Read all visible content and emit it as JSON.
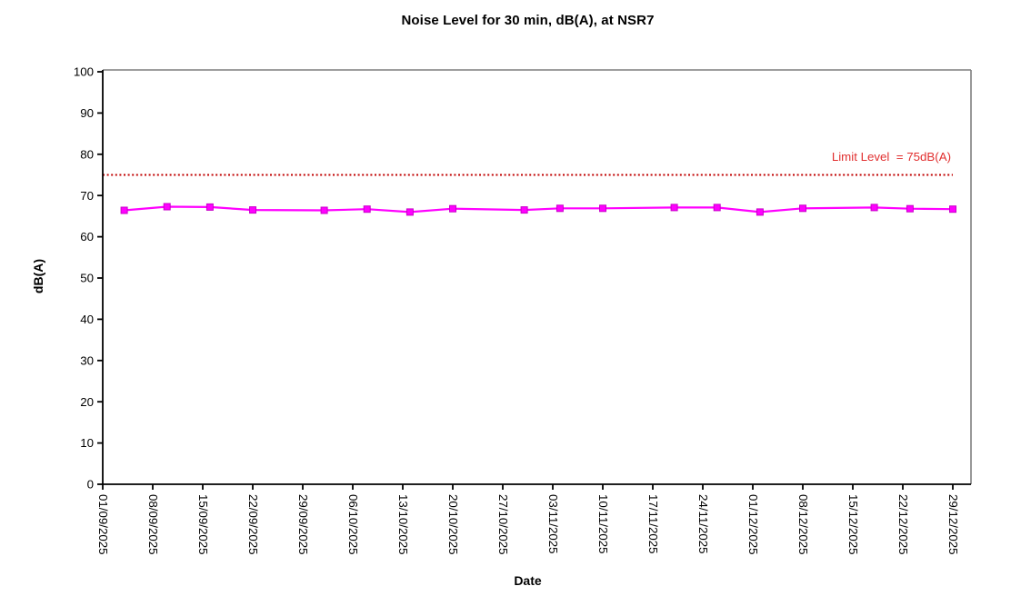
{
  "chart_data": {
    "type": "line",
    "title": "Noise Level for 30 min, dB(A), at NSR7",
    "xlabel": "Date",
    "ylabel": "dB(A)",
    "ylim": [
      0,
      100
    ],
    "ytick_interval": 10,
    "ytick_labels": [
      "0",
      "10",
      "20",
      "30",
      "40",
      "50",
      "60",
      "70",
      "80",
      "90",
      "100"
    ],
    "x_axis_kind": "date",
    "x_range_days": 119,
    "x_tick_labels": [
      "01/09/2025",
      "08/09/2025",
      "15/09/2025",
      "22/09/2025",
      "29/09/2025",
      "06/10/2025",
      "13/10/2025",
      "20/10/2025",
      "27/10/2025",
      "03/11/2025",
      "10/11/2025",
      "17/11/2025",
      "24/11/2025",
      "01/12/2025",
      "08/12/2025",
      "15/12/2025",
      "22/12/2025",
      "29/12/2025"
    ],
    "grid": false,
    "legend": false,
    "series": [
      {
        "marker": "square",
        "color": "#ff00ff",
        "marker_border_color": "#c800c8",
        "points": [
          {
            "date": "04/09/2025",
            "day": 3,
            "value": 66.4
          },
          {
            "date": "10/09/2025",
            "day": 9,
            "value": 67.3
          },
          {
            "date": "16/09/2025",
            "day": 15,
            "value": 67.2
          },
          {
            "date": "22/09/2025",
            "day": 21,
            "value": 66.5
          },
          {
            "date": "02/10/2025",
            "day": 31,
            "value": 66.4
          },
          {
            "date": "08/10/2025",
            "day": 37,
            "value": 66.7
          },
          {
            "date": "14/10/2025",
            "day": 43,
            "value": 66.0
          },
          {
            "date": "20/10/2025",
            "day": 49,
            "value": 66.8
          },
          {
            "date": "30/10/2025",
            "day": 59,
            "value": 66.5
          },
          {
            "date": "04/11/2025",
            "day": 64,
            "value": 66.9
          },
          {
            "date": "10/11/2025",
            "day": 70,
            "value": 66.9
          },
          {
            "date": "20/11/2025",
            "day": 80,
            "value": 67.1
          },
          {
            "date": "26/11/2025",
            "day": 86,
            "value": 67.1
          },
          {
            "date": "02/12/2025",
            "day": 92,
            "value": 66.0
          },
          {
            "date": "08/12/2025",
            "day": 98,
            "value": 66.9
          },
          {
            "date": "18/12/2025",
            "day": 108,
            "value": 67.1
          },
          {
            "date": "23/12/2025",
            "day": 113,
            "value": 66.8
          },
          {
            "date": "29/12/2025",
            "day": 119,
            "value": 66.7
          }
        ]
      }
    ],
    "limit_line": {
      "value": 75,
      "label": "Limit Level  = 75dB(A)",
      "line_color": "#c00000",
      "label_color": "#e12f2f",
      "style": "dotted"
    }
  },
  "colors": {
    "axis": "#000000",
    "plot_border_gray": "#7f7f7f",
    "background": "#ffffff"
  }
}
